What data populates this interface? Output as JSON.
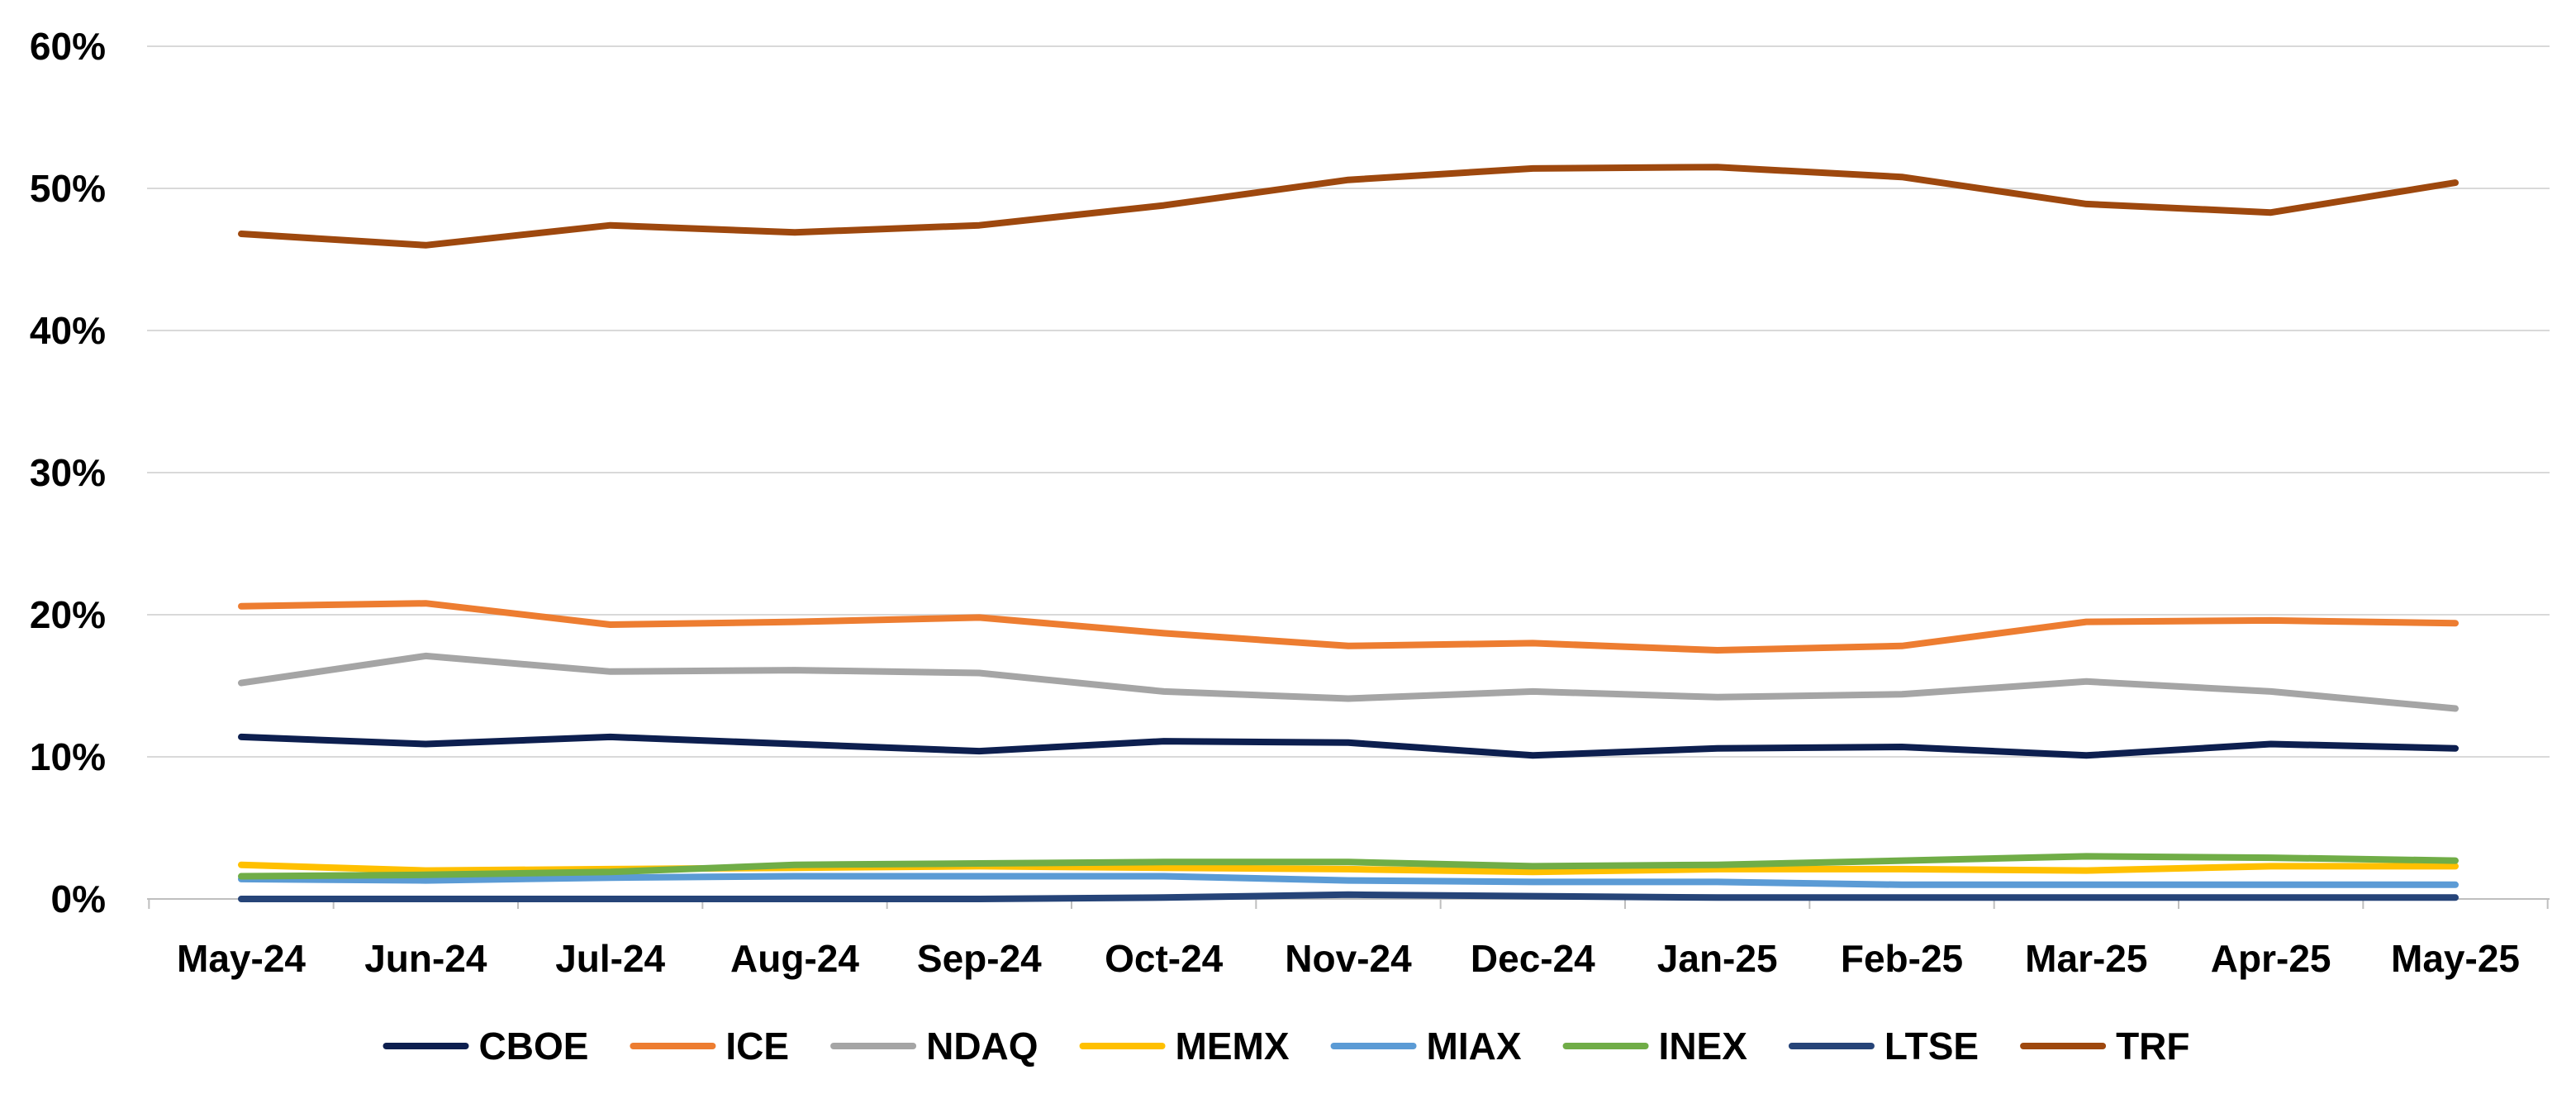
{
  "chart_data": {
    "type": "line",
    "title": "",
    "xlabel": "",
    "ylabel": "",
    "ylim": [
      0,
      60
    ],
    "y_ticks": [
      "0%",
      "10%",
      "20%",
      "30%",
      "40%",
      "50%",
      "60%"
    ],
    "y_tick_values": [
      0,
      10,
      20,
      30,
      40,
      50,
      60
    ],
    "grid": "horizontal",
    "legend_position": "bottom",
    "categories": [
      "May-24",
      "Jun-24",
      "Jul-24",
      "Aug-24",
      "Sep-24",
      "Oct-24",
      "Nov-24",
      "Dec-24",
      "Jan-25",
      "Feb-25",
      "Mar-25",
      "Apr-25",
      "May-25"
    ],
    "series": [
      {
        "name": "CBOE",
        "color": "#0d1f4f",
        "values": [
          11.4,
          10.9,
          11.4,
          10.9,
          10.4,
          11.1,
          11.0,
          10.1,
          10.6,
          10.7,
          10.1,
          10.9,
          10.6
        ]
      },
      {
        "name": "ICE",
        "color": "#ed7d31",
        "values": [
          20.6,
          20.8,
          19.3,
          19.5,
          19.8,
          18.7,
          17.8,
          18.0,
          17.5,
          17.8,
          19.5,
          19.6,
          19.4
        ]
      },
      {
        "name": "NDAQ",
        "color": "#a5a5a5",
        "values": [
          15.2,
          17.1,
          16.0,
          16.1,
          15.9,
          14.6,
          14.1,
          14.6,
          14.2,
          14.4,
          15.3,
          14.6,
          13.4
        ]
      },
      {
        "name": "MEMX",
        "color": "#ffc000",
        "values": [
          2.4,
          2.0,
          2.1,
          2.2,
          2.3,
          2.2,
          2.1,
          1.9,
          2.1,
          2.1,
          2.0,
          2.3,
          2.3
        ]
      },
      {
        "name": "MIAX",
        "color": "#5b9bd5",
        "values": [
          1.4,
          1.3,
          1.5,
          1.6,
          1.6,
          1.6,
          1.3,
          1.2,
          1.2,
          1.0,
          1.0,
          1.0,
          1.0
        ]
      },
      {
        "name": "INEX",
        "color": "#70ad47",
        "values": [
          1.6,
          1.7,
          1.9,
          2.4,
          2.5,
          2.6,
          2.6,
          2.3,
          2.4,
          2.7,
          3.0,
          2.9,
          2.7
        ]
      },
      {
        "name": "LTSE",
        "color": "#264478",
        "values": [
          0.0,
          0.0,
          0.0,
          0.0,
          0.0,
          0.1,
          0.3,
          0.2,
          0.1,
          0.1,
          0.1,
          0.1,
          0.1
        ]
      },
      {
        "name": "TRF",
        "color": "#9e480e",
        "values": [
          46.8,
          46.0,
          47.4,
          46.9,
          47.4,
          48.8,
          50.6,
          51.4,
          51.5,
          50.8,
          48.9,
          48.3,
          50.4
        ]
      }
    ]
  }
}
